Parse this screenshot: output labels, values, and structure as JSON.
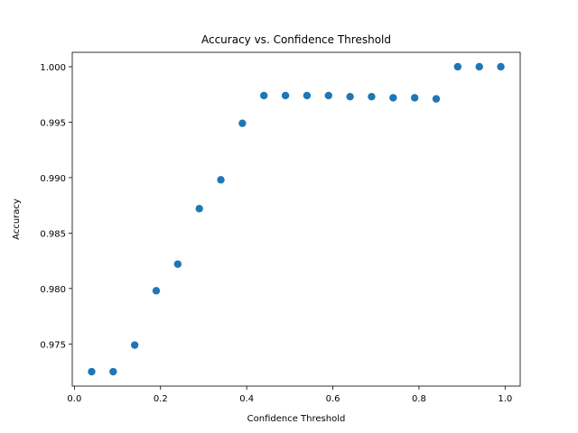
{
  "chart_data": {
    "type": "scatter",
    "title": "Accuracy vs. Confidence Threshold",
    "xlabel": "Confidence Threshold",
    "ylabel": "Accuracy",
    "xlim": [
      -0.005,
      1.035
    ],
    "ylim": [
      0.9712,
      1.0013
    ],
    "xticks": [
      0.0,
      0.2,
      0.4,
      0.6,
      0.8,
      1.0
    ],
    "xtick_labels": [
      "0.0",
      "0.2",
      "0.4",
      "0.6",
      "0.8",
      "1.0"
    ],
    "yticks": [
      0.975,
      0.98,
      0.985,
      0.99,
      0.995,
      1.0
    ],
    "ytick_labels": [
      "0.975",
      "0.980",
      "0.985",
      "0.990",
      "0.995",
      "1.000"
    ],
    "grid": false,
    "legend": false,
    "marker_color": "#1f77b4",
    "x": [
      0.04,
      0.09,
      0.14,
      0.19,
      0.24,
      0.29,
      0.34,
      0.39,
      0.44,
      0.49,
      0.54,
      0.59,
      0.64,
      0.69,
      0.74,
      0.79,
      0.84,
      0.89,
      0.94,
      0.99
    ],
    "y": [
      0.9725,
      0.9725,
      0.9749,
      0.9798,
      0.9822,
      0.9872,
      0.9898,
      0.9949,
      0.9974,
      0.9974,
      0.9974,
      0.9974,
      0.9973,
      0.9973,
      0.9972,
      0.9972,
      0.9971,
      1.0,
      1.0,
      1.0
    ]
  }
}
